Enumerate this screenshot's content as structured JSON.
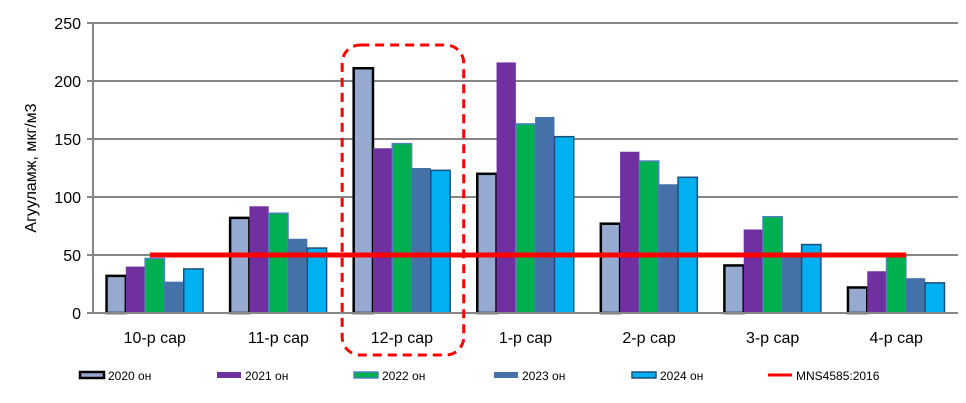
{
  "chart_data": {
    "type": "bar",
    "title": "",
    "xlabel": "",
    "ylabel": "Агууламж, мкг/м3",
    "ylim": [
      0,
      250
    ],
    "yticks": [
      0,
      50,
      100,
      150,
      200,
      250
    ],
    "grid": true,
    "legend_position": "bottom",
    "categories": [
      "10-р сар",
      "11-р сар",
      "12-р сар",
      "1-р сар",
      "2-р сар",
      "3-р сар",
      "4-р сар"
    ],
    "series": [
      {
        "name": "2020 он",
        "color": "#95A9D1",
        "stroke": "#000000",
        "values": [
          32,
          82,
          211,
          120,
          77,
          41,
          22
        ]
      },
      {
        "name": "2021 он",
        "color": "#7030A0",
        "stroke": "#7030A0",
        "values": [
          40,
          92,
          142,
          216,
          139,
          72,
          36
        ]
      },
      {
        "name": "2022 он",
        "color": "#00B050",
        "stroke": "#4F81BD",
        "values": [
          47,
          86,
          146,
          163,
          131,
          83,
          50
        ]
      },
      {
        "name": "2023 он",
        "color": "#4472A8",
        "stroke": "#4472A8",
        "values": [
          27,
          64,
          125,
          169,
          111,
          50,
          30
        ]
      },
      {
        "name": "2024 он",
        "color": "#00B0F0",
        "stroke": "#1F4E79",
        "values": [
          38,
          56,
          123,
          152,
          117,
          59,
          26
        ]
      }
    ],
    "reference_line": {
      "name": "MNS4585:2016",
      "value": 50,
      "color": "#FF0000"
    },
    "annotation": {
      "type": "dashed-rounded-box",
      "highlighted_category": "12-р сар",
      "color": "#FF0000"
    }
  }
}
